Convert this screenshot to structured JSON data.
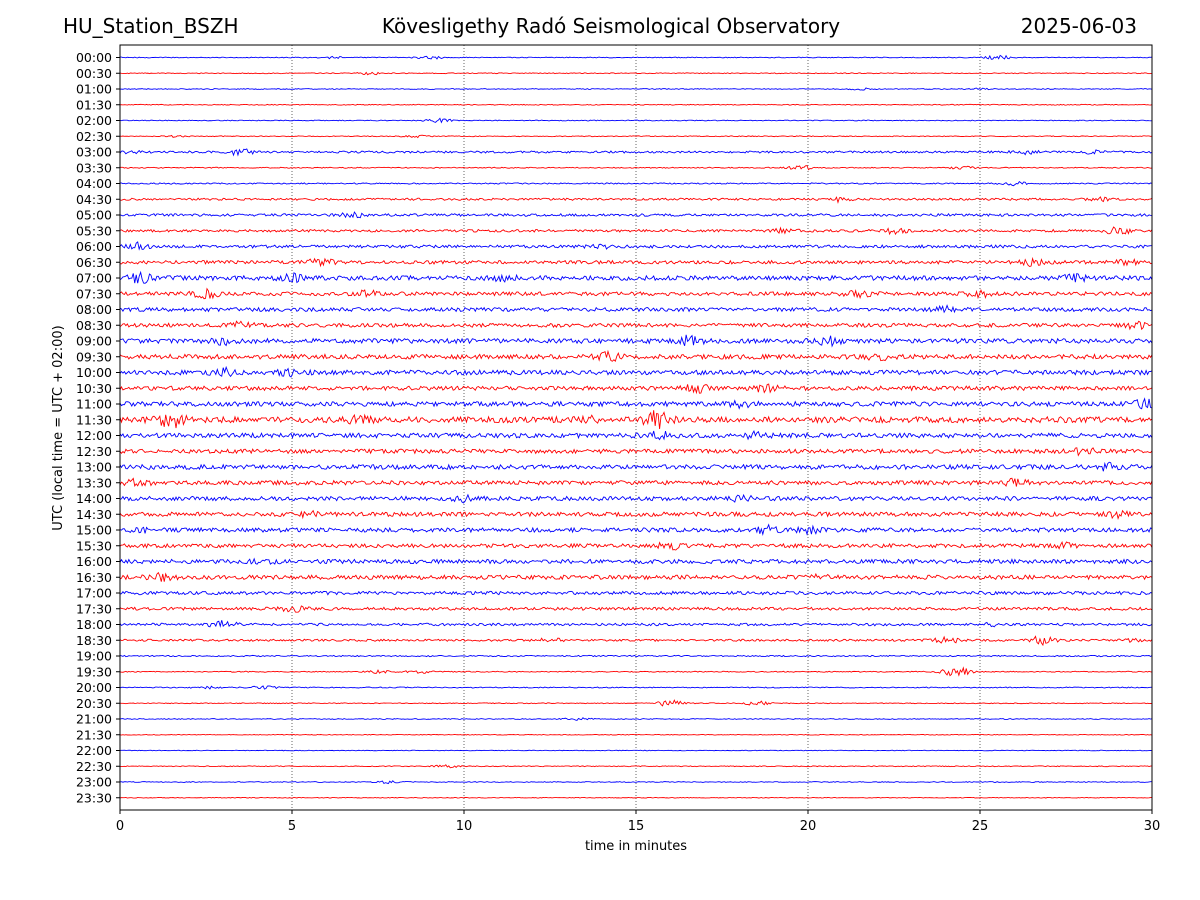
{
  "header": {
    "station": "HU_Station_BSZH",
    "observatory": "Kövesligethy Radó Seismological Observatory",
    "date": "2025-06-03"
  },
  "chart_data": {
    "type": "line",
    "subtype": "helicorder",
    "title": "Kövesligethy Radó Seismological Observatory",
    "xlabel": "time in minutes",
    "ylabel": "UTC (local time = UTC + 02:00)",
    "xlim": [
      0,
      30
    ],
    "xticks": [
      0,
      5,
      10,
      15,
      20,
      25,
      30
    ],
    "grid": "vertical dotted at x ticks",
    "line_colors": [
      "#0000ff",
      "#ff0000"
    ],
    "rows": [
      {
        "label": "00:00",
        "amp": 0.1,
        "events": [
          [
            25.5,
            0.6
          ],
          [
            9.0,
            0.4
          ],
          [
            6.2,
            0.25
          ]
        ]
      },
      {
        "label": "00:30",
        "amp": 0.1,
        "events": [
          [
            7.3,
            0.3
          ]
        ]
      },
      {
        "label": "01:00",
        "amp": 0.1,
        "events": [
          [
            21.5,
            0.2
          ],
          [
            25.0,
            0.2
          ]
        ]
      },
      {
        "label": "01:30",
        "amp": 0.1,
        "events": []
      },
      {
        "label": "02:00",
        "amp": 0.1,
        "events": [
          [
            9.3,
            0.5
          ]
        ]
      },
      {
        "label": "02:30",
        "amp": 0.1,
        "events": [
          [
            8.6,
            0.3
          ],
          [
            1.6,
            0.2
          ]
        ]
      },
      {
        "label": "03:00",
        "amp": 0.25,
        "events": [
          [
            3.5,
            0.7
          ],
          [
            0.3,
            0.4
          ],
          [
            26.3,
            0.4
          ],
          [
            28.3,
            0.3
          ]
        ]
      },
      {
        "label": "03:30",
        "amp": 0.12,
        "events": [
          [
            19.8,
            0.5
          ],
          [
            24.5,
            0.3
          ]
        ]
      },
      {
        "label": "04:00",
        "amp": 0.15,
        "events": [
          [
            26.0,
            0.4
          ]
        ]
      },
      {
        "label": "04:30",
        "amp": 0.25,
        "events": [
          [
            20.9,
            0.5
          ],
          [
            28.5,
            0.4
          ]
        ]
      },
      {
        "label": "05:00",
        "amp": 0.3,
        "events": [
          [
            6.8,
            0.5
          ]
        ]
      },
      {
        "label": "05:30",
        "amp": 0.3,
        "events": [
          [
            29.0,
            0.8
          ],
          [
            22.5,
            0.6
          ],
          [
            19.3,
            0.4
          ]
        ]
      },
      {
        "label": "06:00",
        "amp": 0.35,
        "events": [
          [
            0.4,
            0.9
          ],
          [
            14.0,
            0.5
          ]
        ]
      },
      {
        "label": "06:30",
        "amp": 0.4,
        "events": [
          [
            5.8,
            0.8
          ],
          [
            26.5,
            0.7
          ],
          [
            29.2,
            0.6
          ]
        ]
      },
      {
        "label": "07:00",
        "amp": 0.55,
        "events": [
          [
            0.6,
            0.9
          ],
          [
            5.0,
            0.7
          ],
          [
            11.2,
            0.6
          ],
          [
            27.7,
            0.7
          ]
        ]
      },
      {
        "label": "07:30",
        "amp": 0.45,
        "events": [
          [
            2.5,
            0.9
          ],
          [
            7.2,
            0.6
          ],
          [
            21.5,
            0.9
          ],
          [
            25.0,
            0.6
          ]
        ]
      },
      {
        "label": "08:00",
        "amp": 0.45,
        "events": [
          [
            24.0,
            0.6
          ]
        ]
      },
      {
        "label": "08:30",
        "amp": 0.45,
        "events": [
          [
            3.5,
            0.6
          ],
          [
            29.5,
            0.7
          ]
        ]
      },
      {
        "label": "09:00",
        "amp": 0.55,
        "events": [
          [
            16.5,
            1.0
          ],
          [
            20.6,
            1.0
          ],
          [
            3.0,
            0.6
          ]
        ]
      },
      {
        "label": "09:30",
        "amp": 0.55,
        "events": [
          [
            14.2,
            0.8
          ],
          [
            22.0,
            0.6
          ]
        ]
      },
      {
        "label": "10:00",
        "amp": 0.55,
        "events": [
          [
            3.0,
            0.8
          ],
          [
            5.0,
            0.6
          ]
        ]
      },
      {
        "label": "10:30",
        "amp": 0.5,
        "events": [
          [
            16.8,
            0.9
          ],
          [
            18.8,
            0.9
          ]
        ]
      },
      {
        "label": "11:00",
        "amp": 0.55,
        "events": [
          [
            29.8,
            1.0
          ],
          [
            18.0,
            0.7
          ]
        ]
      },
      {
        "label": "11:30",
        "amp": 0.7,
        "events": [
          [
            1.5,
            1.6
          ],
          [
            15.6,
            1.8
          ],
          [
            7.0,
            0.8
          ],
          [
            13.5,
            0.8
          ]
        ]
      },
      {
        "label": "12:00",
        "amp": 0.55,
        "events": [
          [
            15.6,
            0.9
          ],
          [
            18.5,
            0.6
          ]
        ]
      },
      {
        "label": "12:30",
        "amp": 0.5,
        "events": [
          [
            28.0,
            0.6
          ]
        ]
      },
      {
        "label": "13:00",
        "amp": 0.55,
        "events": [
          [
            28.8,
            0.7
          ]
        ]
      },
      {
        "label": "13:30",
        "amp": 0.5,
        "events": [
          [
            0.5,
            0.6
          ],
          [
            26.0,
            0.6
          ]
        ]
      },
      {
        "label": "14:00",
        "amp": 0.5,
        "events": [
          [
            10.0,
            0.6
          ],
          [
            18.0,
            0.5
          ]
        ]
      },
      {
        "label": "14:30",
        "amp": 0.5,
        "events": [
          [
            29.0,
            0.6
          ],
          [
            5.5,
            0.5
          ]
        ]
      },
      {
        "label": "15:00",
        "amp": 0.5,
        "events": [
          [
            18.8,
            0.8
          ],
          [
            20.0,
            0.6
          ],
          [
            0.7,
            0.5
          ]
        ]
      },
      {
        "label": "15:30",
        "amp": 0.45,
        "events": [
          [
            16.0,
            0.7
          ],
          [
            27.5,
            0.5
          ]
        ]
      },
      {
        "label": "16:00",
        "amp": 0.5,
        "events": [
          [
            4.2,
            0.5
          ]
        ]
      },
      {
        "label": "16:30",
        "amp": 0.5,
        "events": [
          [
            1.2,
            0.7
          ],
          [
            20.5,
            0.5
          ]
        ]
      },
      {
        "label": "17:00",
        "amp": 0.4,
        "events": []
      },
      {
        "label": "17:30",
        "amp": 0.35,
        "events": [
          [
            5.0,
            0.6
          ]
        ]
      },
      {
        "label": "18:00",
        "amp": 0.3,
        "events": [
          [
            3.0,
            0.9
          ],
          [
            25.3,
            0.4
          ]
        ]
      },
      {
        "label": "18:30",
        "amp": 0.25,
        "events": [
          [
            26.8,
            0.9
          ],
          [
            24.0,
            0.8
          ],
          [
            12.5,
            0.4
          ],
          [
            29.5,
            0.3
          ]
        ]
      },
      {
        "label": "19:00",
        "amp": 0.15,
        "events": []
      },
      {
        "label": "19:30",
        "amp": 0.12,
        "events": [
          [
            24.3,
            1.4
          ],
          [
            8.7,
            0.4
          ],
          [
            7.5,
            0.3
          ]
        ]
      },
      {
        "label": "20:00",
        "amp": 0.12,
        "events": [
          [
            4.2,
            0.4
          ],
          [
            2.5,
            0.3
          ]
        ]
      },
      {
        "label": "20:30",
        "amp": 0.1,
        "events": [
          [
            16.0,
            0.9
          ],
          [
            18.5,
            0.5
          ]
        ]
      },
      {
        "label": "21:00",
        "amp": 0.1,
        "events": [
          [
            13.3,
            0.3
          ]
        ]
      },
      {
        "label": "21:30",
        "amp": 0.08,
        "events": []
      },
      {
        "label": "22:00",
        "amp": 0.08,
        "events": []
      },
      {
        "label": "22:30",
        "amp": 0.1,
        "events": [
          [
            9.5,
            0.3
          ]
        ]
      },
      {
        "label": "23:00",
        "amp": 0.1,
        "events": [
          [
            7.8,
            0.3
          ]
        ]
      },
      {
        "label": "23:30",
        "amp": 0.08,
        "events": []
      }
    ]
  }
}
